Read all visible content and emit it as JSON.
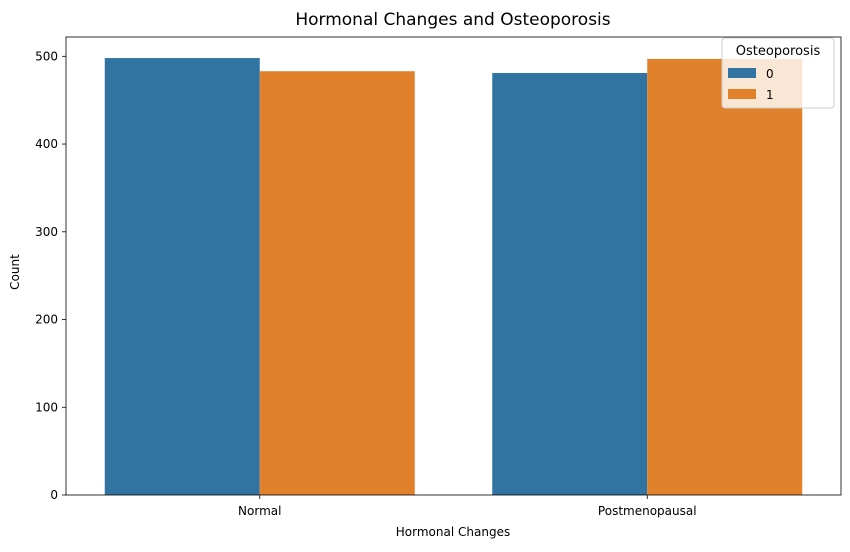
{
  "chart_data": {
    "type": "bar",
    "title": "Hormonal Changes and Osteoporosis",
    "xlabel": "Hormonal Changes",
    "ylabel": "Count",
    "categories": [
      "Normal",
      "Postmenopausal"
    ],
    "series": [
      {
        "name": "0",
        "values": [
          498,
          481
        ],
        "color": "#3274a1"
      },
      {
        "name": "1",
        "values": [
          483,
          497
        ],
        "color": "#e1812c"
      }
    ],
    "ylim": [
      0,
      522
    ],
    "yticks": [
      0,
      100,
      200,
      300,
      400,
      500
    ],
    "legend": {
      "title": "Osteoporosis",
      "placement": "top-right"
    },
    "grid": false
  }
}
